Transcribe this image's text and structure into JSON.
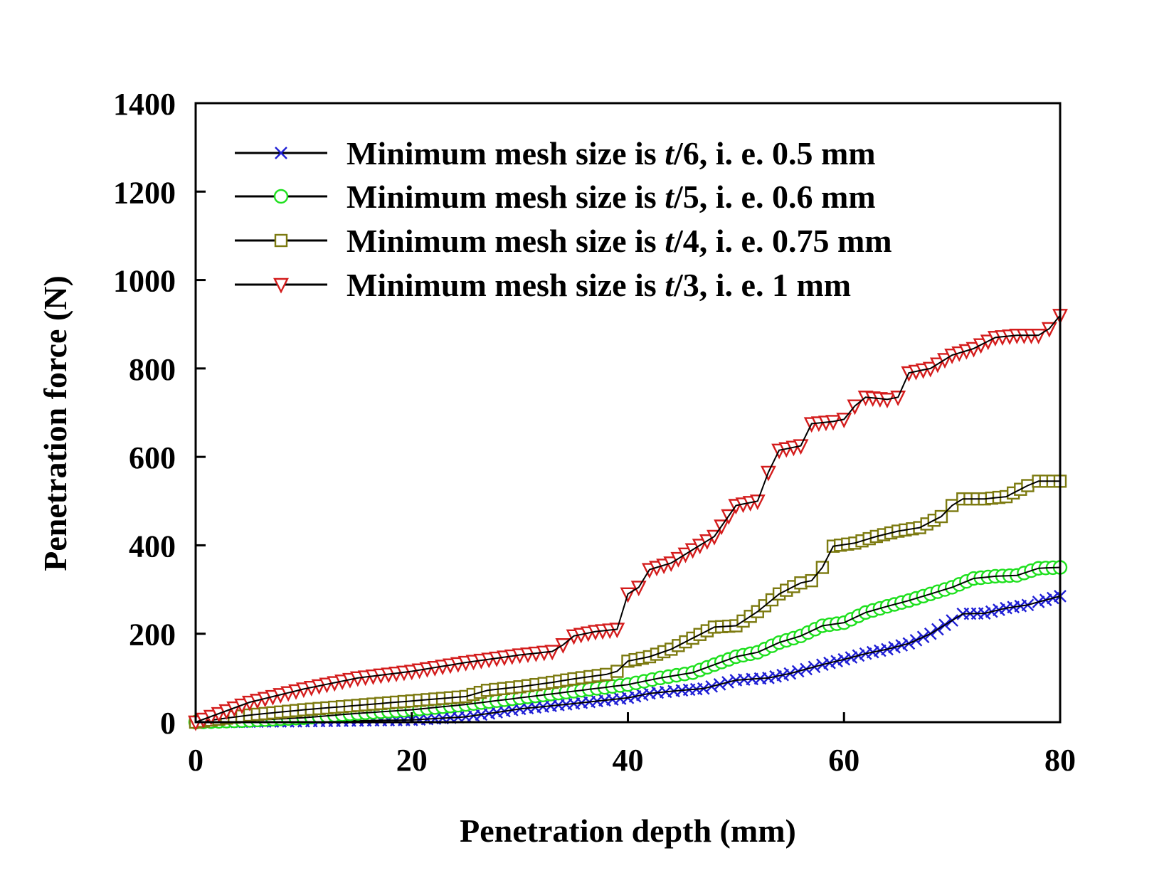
{
  "chart_data": {
    "type": "line",
    "title": "",
    "xlabel": "Penetration depth (mm)",
    "ylabel": "Penetration force (N)",
    "xlim": [
      0,
      80
    ],
    "ylim": [
      0,
      1400
    ],
    "x_ticks": [
      0,
      20,
      40,
      60,
      80
    ],
    "y_ticks": [
      0,
      200,
      400,
      600,
      800,
      1000,
      1200,
      1400
    ],
    "grid": false,
    "legend_position": "top-left",
    "series": [
      {
        "name_prefix": "Minimum mesh size is ",
        "name_italic": "t",
        "name_suffix": "/6, i. e. 0.5 mm",
        "marker": "x",
        "color": "#1f1fd6",
        "points": [
          [
            0,
            0
          ],
          [
            10,
            2
          ],
          [
            20,
            5
          ],
          [
            25,
            12
          ],
          [
            30,
            30
          ],
          [
            35,
            42
          ],
          [
            40,
            55
          ],
          [
            42,
            65
          ],
          [
            45,
            72
          ],
          [
            47,
            76
          ],
          [
            50,
            95
          ],
          [
            53,
            100
          ],
          [
            55,
            110
          ],
          [
            58,
            130
          ],
          [
            60,
            142
          ],
          [
            62,
            155
          ],
          [
            64,
            165
          ],
          [
            66,
            178
          ],
          [
            68,
            200
          ],
          [
            70,
            230
          ],
          [
            71,
            245
          ],
          [
            73,
            246
          ],
          [
            75,
            258
          ],
          [
            77,
            265
          ],
          [
            78,
            272
          ],
          [
            80,
            285
          ]
        ]
      },
      {
        "name_prefix": "Minimum mesh size is ",
        "name_italic": "t",
        "name_suffix": "/5, i. e. 0.6 mm",
        "marker": "circle",
        "color": "#1ee01e",
        "points": [
          [
            0,
            0
          ],
          [
            5,
            4
          ],
          [
            10,
            10
          ],
          [
            15,
            20
          ],
          [
            20,
            28
          ],
          [
            25,
            40
          ],
          [
            30,
            55
          ],
          [
            35,
            70
          ],
          [
            40,
            85
          ],
          [
            43,
            100
          ],
          [
            46,
            112
          ],
          [
            48,
            130
          ],
          [
            50,
            148
          ],
          [
            52,
            158
          ],
          [
            54,
            180
          ],
          [
            56,
            195
          ],
          [
            58,
            218
          ],
          [
            60,
            225
          ],
          [
            62,
            248
          ],
          [
            64,
            262
          ],
          [
            66,
            275
          ],
          [
            68,
            290
          ],
          [
            70,
            305
          ],
          [
            72,
            325
          ],
          [
            74,
            330
          ],
          [
            76,
            332
          ],
          [
            78,
            348
          ],
          [
            80,
            350
          ]
        ]
      },
      {
        "name_prefix": "Minimum mesh size is ",
        "name_italic": "t",
        "name_suffix": "/4, i. e. 0.75 mm",
        "marker": "square",
        "color": "#7c7a10",
        "points": [
          [
            0,
            0
          ],
          [
            5,
            16
          ],
          [
            10,
            28
          ],
          [
            15,
            38
          ],
          [
            20,
            48
          ],
          [
            25,
            58
          ],
          [
            27,
            72
          ],
          [
            30,
            80
          ],
          [
            33,
            90
          ],
          [
            35,
            98
          ],
          [
            38,
            108
          ],
          [
            39,
            115
          ],
          [
            40,
            138
          ],
          [
            42,
            148
          ],
          [
            44,
            165
          ],
          [
            46,
            190
          ],
          [
            48,
            215
          ],
          [
            50,
            218
          ],
          [
            52,
            250
          ],
          [
            54,
            290
          ],
          [
            56,
            315
          ],
          [
            57,
            320
          ],
          [
            58,
            350
          ],
          [
            59,
            398
          ],
          [
            61,
            405
          ],
          [
            63,
            420
          ],
          [
            65,
            432
          ],
          [
            67,
            440
          ],
          [
            69,
            465
          ],
          [
            70,
            490
          ],
          [
            71,
            505
          ],
          [
            73,
            505
          ],
          [
            75,
            510
          ],
          [
            77,
            535
          ],
          [
            78,
            545
          ],
          [
            80,
            545
          ]
        ]
      },
      {
        "name_prefix": "Minimum mesh size is ",
        "name_italic": "t",
        "name_suffix": "/3, i. e. 1 mm",
        "marker": "triangle-down",
        "color": "#d41c1c",
        "points": [
          [
            0,
            0
          ],
          [
            5,
            45
          ],
          [
            10,
            75
          ],
          [
            15,
            100
          ],
          [
            20,
            115
          ],
          [
            25,
            135
          ],
          [
            30,
            152
          ],
          [
            33,
            160
          ],
          [
            34,
            175
          ],
          [
            35,
            195
          ],
          [
            37,
            205
          ],
          [
            39,
            210
          ],
          [
            40,
            290
          ],
          [
            41,
            305
          ],
          [
            42,
            345
          ],
          [
            44,
            360
          ],
          [
            46,
            390
          ],
          [
            48,
            420
          ],
          [
            50,
            490
          ],
          [
            52,
            500
          ],
          [
            53,
            565
          ],
          [
            54,
            615
          ],
          [
            56,
            625
          ],
          [
            57,
            675
          ],
          [
            59,
            680
          ],
          [
            60,
            685
          ],
          [
            61,
            715
          ],
          [
            62,
            735
          ],
          [
            64,
            730
          ],
          [
            65,
            735
          ],
          [
            66,
            790
          ],
          [
            68,
            800
          ],
          [
            70,
            830
          ],
          [
            72,
            845
          ],
          [
            74,
            870
          ],
          [
            76,
            875
          ],
          [
            78,
            875
          ],
          [
            79,
            890
          ],
          [
            80,
            920
          ]
        ]
      }
    ]
  }
}
